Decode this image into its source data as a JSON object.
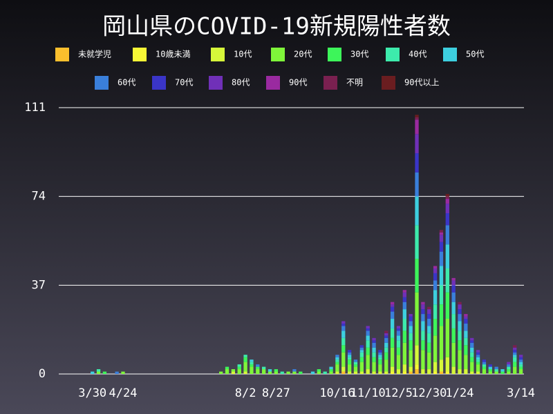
{
  "chart_data": {
    "type": "stacked_bar",
    "title": "岡山県のCOVID-19新規陽性者数",
    "categories": [
      null,
      null,
      null,
      null,
      null,
      "3/30",
      null,
      null,
      null,
      null,
      "4/24",
      null,
      null,
      null,
      null,
      null,
      null,
      null,
      null,
      null,
      null,
      null,
      null,
      null,
      null,
      null,
      null,
      null,
      null,
      null,
      "8/2",
      null,
      null,
      null,
      null,
      "8/27",
      null,
      null,
      null,
      null,
      null,
      null,
      null,
      null,
      null,
      "10/16",
      null,
      null,
      null,
      null,
      "11/10",
      null,
      null,
      null,
      null,
      "12/5",
      null,
      null,
      null,
      null,
      "12/30",
      null,
      null,
      null,
      null,
      "1/24",
      null,
      null,
      null,
      null,
      null,
      null,
      null,
      null,
      null,
      "3/14"
    ],
    "ylim": [
      0,
      111
    ],
    "yticks": [
      0,
      37,
      74,
      111
    ],
    "grid": true,
    "series": [
      {
        "name": "未就学児",
        "color": "#fbbf2d",
        "values": [
          0,
          0,
          0,
          0,
          0,
          0,
          0,
          0,
          0,
          0,
          0,
          0,
          0,
          0,
          0,
          0,
          0,
          0,
          0,
          0,
          0,
          0,
          0,
          0,
          0,
          0,
          0,
          0,
          0,
          0,
          0,
          0,
          0,
          0,
          0,
          0,
          0,
          0,
          0,
          0,
          0,
          0,
          0,
          0,
          0,
          0,
          1,
          0,
          0,
          0,
          0,
          0,
          0,
          0,
          0,
          0,
          0,
          1,
          2,
          0,
          0,
          0,
          1,
          0,
          0,
          0,
          0,
          0,
          0,
          0,
          0,
          0,
          0,
          0,
          0,
          0
        ]
      },
      {
        "name": "10歳未満",
        "color": "#f7f736",
        "values": [
          0,
          0,
          0,
          0,
          0,
          0,
          0,
          0,
          0,
          0,
          0,
          0,
          0,
          0,
          0,
          0,
          0,
          0,
          0,
          0,
          0,
          0,
          0,
          0,
          0,
          0,
          0,
          0,
          0,
          0,
          0,
          0,
          0,
          0,
          0,
          0,
          0,
          0,
          0,
          0,
          0,
          0,
          0,
          0,
          0,
          0,
          0,
          0,
          0,
          0,
          0,
          0,
          0,
          0,
          1,
          0,
          1,
          0,
          2,
          0,
          0,
          1,
          0,
          1,
          0,
          0,
          0,
          0,
          0,
          0,
          0,
          0,
          0,
          0,
          0,
          0
        ]
      },
      {
        "name": "10代",
        "color": "#d6f73a",
        "values": [
          0,
          0,
          0,
          0,
          0,
          0,
          0,
          0,
          0,
          0,
          0,
          0,
          0,
          0,
          0,
          0,
          0,
          0,
          0,
          0,
          0,
          0,
          0,
          0,
          0,
          0,
          0,
          0,
          1,
          0,
          1,
          0,
          0,
          0,
          0,
          0,
          0,
          0,
          0,
          0,
          0,
          0,
          0,
          0,
          0,
          1,
          2,
          1,
          1,
          1,
          2,
          1,
          1,
          1,
          2,
          2,
          3,
          2,
          8,
          2,
          2,
          4,
          5,
          6,
          3,
          2,
          2,
          1,
          1,
          0,
          0,
          0,
          0,
          0,
          0,
          0
        ]
      },
      {
        "name": "20代",
        "color": "#7ff53a",
        "values": [
          0,
          0,
          0,
          0,
          0,
          0,
          1,
          0,
          0,
          0,
          1,
          0,
          0,
          0,
          0,
          0,
          0,
          0,
          0,
          0,
          0,
          0,
          0,
          0,
          0,
          0,
          1,
          2,
          1,
          2,
          4,
          3,
          2,
          2,
          1,
          1,
          0,
          1,
          1,
          0,
          0,
          0,
          1,
          0,
          1,
          3,
          6,
          3,
          2,
          4,
          6,
          4,
          3,
          5,
          8,
          6,
          9,
          7,
          22,
          8,
          7,
          11,
          14,
          16,
          10,
          8,
          6,
          4,
          3,
          2,
          1,
          1,
          0,
          1,
          3,
          2
        ]
      },
      {
        "name": "30代",
        "color": "#3df55a",
        "values": [
          0,
          0,
          0,
          0,
          0,
          0,
          0,
          1,
          0,
          0,
          0,
          0,
          0,
          0,
          0,
          0,
          0,
          0,
          0,
          0,
          0,
          0,
          0,
          0,
          0,
          0,
          0,
          1,
          0,
          1,
          2,
          1,
          1,
          0,
          0,
          1,
          0,
          0,
          0,
          1,
          0,
          0,
          1,
          0,
          1,
          1,
          3,
          2,
          1,
          2,
          3,
          2,
          2,
          3,
          4,
          3,
          5,
          4,
          14,
          4,
          4,
          7,
          9,
          11,
          6,
          4,
          4,
          2,
          1,
          1,
          1,
          0,
          1,
          1,
          2,
          1
        ]
      },
      {
        "name": "40代",
        "color": "#3debac",
        "values": [
          0,
          0,
          0,
          0,
          0,
          0,
          1,
          0,
          0,
          0,
          0,
          0,
          0,
          0,
          0,
          0,
          0,
          0,
          0,
          0,
          0,
          0,
          0,
          0,
          0,
          0,
          0,
          0,
          0,
          1,
          1,
          1,
          0,
          1,
          0,
          0,
          1,
          0,
          0,
          0,
          0,
          0,
          0,
          1,
          0,
          1,
          3,
          1,
          1,
          2,
          3,
          2,
          1,
          2,
          4,
          3,
          5,
          3,
          14,
          4,
          4,
          6,
          8,
          10,
          6,
          4,
          3,
          2,
          1,
          1,
          0,
          1,
          0,
          1,
          2,
          1
        ]
      },
      {
        "name": "50代",
        "color": "#3dcfdf",
        "values": [
          0,
          0,
          0,
          0,
          0,
          1,
          0,
          0,
          0,
          0,
          0,
          0,
          0,
          0,
          0,
          0,
          0,
          0,
          0,
          0,
          0,
          0,
          0,
          0,
          0,
          0,
          0,
          0,
          0,
          0,
          0,
          1,
          0,
          0,
          1,
          0,
          0,
          0,
          0,
          0,
          0,
          1,
          0,
          0,
          1,
          1,
          3,
          1,
          0,
          1,
          2,
          2,
          1,
          2,
          4,
          2,
          4,
          3,
          12,
          4,
          3,
          6,
          8,
          10,
          5,
          4,
          3,
          2,
          1,
          0,
          1,
          0,
          1,
          0,
          1,
          1
        ]
      },
      {
        "name": "60代",
        "color": "#3a7fdb",
        "values": [
          0,
          0,
          0,
          0,
          0,
          0,
          0,
          0,
          0,
          1,
          0,
          0,
          0,
          0,
          0,
          0,
          0,
          0,
          0,
          0,
          0,
          0,
          0,
          0,
          0,
          0,
          0,
          0,
          0,
          0,
          0,
          0,
          1,
          0,
          0,
          0,
          0,
          0,
          1,
          0,
          0,
          0,
          0,
          0,
          0,
          1,
          2,
          1,
          1,
          1,
          2,
          2,
          1,
          2,
          3,
          2,
          3,
          2,
          10,
          3,
          3,
          4,
          6,
          8,
          4,
          3,
          3,
          2,
          1,
          1,
          0,
          1,
          0,
          1,
          1,
          1
        ]
      },
      {
        "name": "70代",
        "color": "#3a35c8",
        "values": [
          0,
          0,
          0,
          0,
          0,
          0,
          0,
          0,
          0,
          0,
          0,
          0,
          0,
          0,
          0,
          0,
          0,
          0,
          0,
          0,
          0,
          0,
          0,
          0,
          0,
          0,
          0,
          0,
          0,
          0,
          0,
          0,
          0,
          0,
          0,
          0,
          0,
          0,
          0,
          0,
          0,
          0,
          0,
          0,
          0,
          0,
          1,
          1,
          0,
          1,
          1,
          1,
          1,
          1,
          2,
          1,
          2,
          2,
          8,
          2,
          2,
          3,
          4,
          5,
          3,
          2,
          2,
          1,
          1,
          1,
          1,
          0,
          0,
          0,
          1,
          1
        ]
      },
      {
        "name": "80代",
        "color": "#7030b8",
        "values": [
          0,
          0,
          0,
          0,
          0,
          0,
          0,
          0,
          0,
          0,
          0,
          0,
          0,
          0,
          0,
          0,
          0,
          0,
          0,
          0,
          0,
          0,
          0,
          0,
          0,
          0,
          0,
          0,
          0,
          0,
          0,
          0,
          0,
          0,
          0,
          0,
          0,
          0,
          0,
          0,
          0,
          0,
          0,
          0,
          0,
          0,
          1,
          0,
          0,
          0,
          1,
          1,
          0,
          1,
          1,
          1,
          2,
          1,
          8,
          2,
          2,
          2,
          3,
          4,
          2,
          2,
          1,
          1,
          1,
          0,
          0,
          0,
          0,
          1,
          1,
          1
        ]
      },
      {
        "name": "90代",
        "color": "#9a2aa0",
        "values": [
          0,
          0,
          0,
          0,
          0,
          0,
          0,
          0,
          0,
          0,
          0,
          0,
          0,
          0,
          0,
          0,
          0,
          0,
          0,
          0,
          0,
          0,
          0,
          0,
          0,
          0,
          0,
          0,
          0,
          0,
          0,
          0,
          0,
          0,
          0,
          0,
          0,
          0,
          0,
          0,
          0,
          0,
          0,
          0,
          0,
          0,
          0,
          0,
          0,
          0,
          0,
          0,
          0,
          0,
          1,
          0,
          1,
          0,
          6,
          1,
          0,
          1,
          1,
          2,
          1,
          0,
          1,
          0,
          0,
          0,
          0,
          0,
          0,
          0,
          0,
          0
        ]
      },
      {
        "name": "不明",
        "color": "#7a2050",
        "values": [
          0,
          0,
          0,
          0,
          0,
          0,
          0,
          0,
          0,
          0,
          0,
          0,
          0,
          0,
          0,
          0,
          0,
          0,
          0,
          0,
          0,
          0,
          0,
          0,
          0,
          0,
          0,
          0,
          0,
          0,
          0,
          0,
          0,
          0,
          0,
          0,
          0,
          0,
          0,
          0,
          0,
          0,
          0,
          0,
          0,
          0,
          0,
          0,
          0,
          0,
          0,
          0,
          0,
          1,
          0,
          0,
          0,
          0,
          1,
          0,
          1,
          0,
          1,
          1,
          0,
          1,
          0,
          0,
          0,
          0,
          0,
          0,
          0,
          0,
          1,
          0
        ]
      },
      {
        "name": "90代以上",
        "color": "#6a1d20",
        "values": [
          0,
          0,
          0,
          0,
          0,
          0,
          0,
          0,
          0,
          0,
          0,
          0,
          0,
          0,
          0,
          0,
          0,
          0,
          0,
          0,
          0,
          0,
          0,
          0,
          0,
          0,
          0,
          0,
          0,
          0,
          0,
          0,
          0,
          0,
          0,
          0,
          0,
          0,
          0,
          0,
          0,
          0,
          0,
          0,
          0,
          0,
          0,
          0,
          0,
          0,
          0,
          0,
          0,
          0,
          0,
          0,
          0,
          0,
          1,
          0,
          0,
          0,
          0,
          1,
          0,
          0,
          0,
          0,
          0,
          0,
          0,
          0,
          0,
          0,
          0,
          0
        ]
      }
    ]
  }
}
